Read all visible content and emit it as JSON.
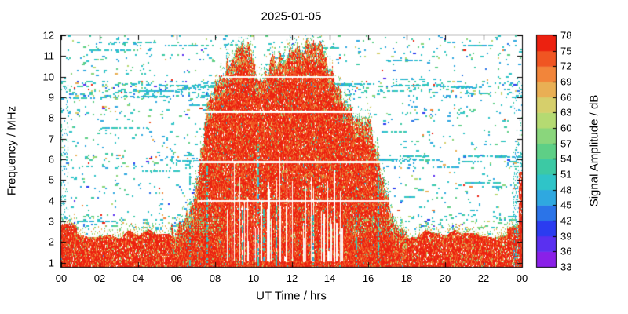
{
  "chart_data": {
    "type": "heatmap",
    "title": "2025-01-05",
    "xlabel": "UT Time / hrs",
    "ylabel": "Frequency / MHz",
    "colorbar_label": "Signal Amplitude / dB",
    "x_range_hours": [
      0,
      24
    ],
    "x_tick_labels": [
      "00",
      "02",
      "04",
      "06",
      "08",
      "10",
      "12",
      "14",
      "16",
      "18",
      "20",
      "22",
      "00"
    ],
    "y_range_mhz": [
      0.8,
      12
    ],
    "y_tick_labels": [
      "1",
      "2",
      "3",
      "4",
      "5",
      "6",
      "7",
      "8",
      "9",
      "10",
      "11",
      "12"
    ],
    "grid": false,
    "legend_position": "colorbar-right",
    "background_color": "#ffffff",
    "colorbar": {
      "range_db": [
        33,
        78
      ],
      "tick_step_db": 3,
      "tick_labels_top_to_bottom": [
        "78",
        "75",
        "72",
        "69",
        "66",
        "63",
        "60",
        "57",
        "54",
        "51",
        "48",
        "45",
        "42",
        "39",
        "36",
        "33"
      ],
      "segment_colors_bottom_to_top": [
        "#8a20e8",
        "#5a30f0",
        "#2b3cf0",
        "#2b74e8",
        "#2fa8e0",
        "#2fc4c8",
        "#3cc9a4",
        "#5ecf86",
        "#8ad67c",
        "#b5da72",
        "#d6cf6b",
        "#e9af54",
        "#f2853a",
        "#f05522",
        "#ec2110"
      ]
    },
    "features": {
      "daytime_echo_envelope": {
        "description": "Approximate upper frequency (MHz) of the strong red (~75-78 dB) daytime echo region versus UT hour",
        "points_hour_mhz": [
          [
            5.7,
            2.4
          ],
          [
            6.2,
            2.8
          ],
          [
            6.7,
            3.6
          ],
          [
            7.0,
            4.6
          ],
          [
            7.3,
            6.5
          ],
          [
            7.6,
            8.6
          ],
          [
            8.0,
            9.6
          ],
          [
            8.4,
            10.3
          ],
          [
            8.8,
            10.9
          ],
          [
            9.2,
            11.5
          ],
          [
            9.5,
            11.8
          ],
          [
            9.8,
            11.2
          ],
          [
            10.1,
            10.3
          ],
          [
            10.4,
            9.7
          ],
          [
            10.7,
            10.2
          ],
          [
            11.0,
            10.8
          ],
          [
            11.4,
            11.0
          ],
          [
            12.0,
            11.2
          ],
          [
            12.4,
            11.5
          ],
          [
            12.8,
            11.7
          ],
          [
            13.1,
            11.9
          ],
          [
            13.4,
            11.6
          ],
          [
            13.7,
            11.0
          ],
          [
            14.0,
            10.4
          ],
          [
            14.3,
            9.6
          ],
          [
            14.7,
            8.8
          ],
          [
            15.0,
            8.3
          ],
          [
            15.4,
            8.0
          ],
          [
            15.8,
            7.9
          ],
          [
            16.1,
            7.6
          ],
          [
            16.4,
            6.6
          ],
          [
            16.7,
            5.2
          ],
          [
            17.0,
            4.0
          ],
          [
            17.3,
            3.2
          ],
          [
            17.6,
            2.7
          ],
          [
            18.0,
            2.4
          ]
        ]
      },
      "persistent_low_band_mhz": [
        1.0,
        2.4
      ],
      "speckle_bands_mhz": [
        [
          9.0,
          9.8
        ],
        [
          5.6,
          6.3
        ],
        [
          2.6,
          3.4
        ],
        [
          8.1,
          8.5
        ],
        [
          4.4,
          4.8
        ],
        [
          6.7,
          7.1
        ],
        [
          10.8,
          11.8
        ]
      ],
      "white_gap_lines_mhz": [
        10.0,
        8.3,
        5.9,
        4.0
      ],
      "right_edge_red_column": {
        "hour_start": 23.85,
        "max_mhz": 5.4
      }
    }
  }
}
